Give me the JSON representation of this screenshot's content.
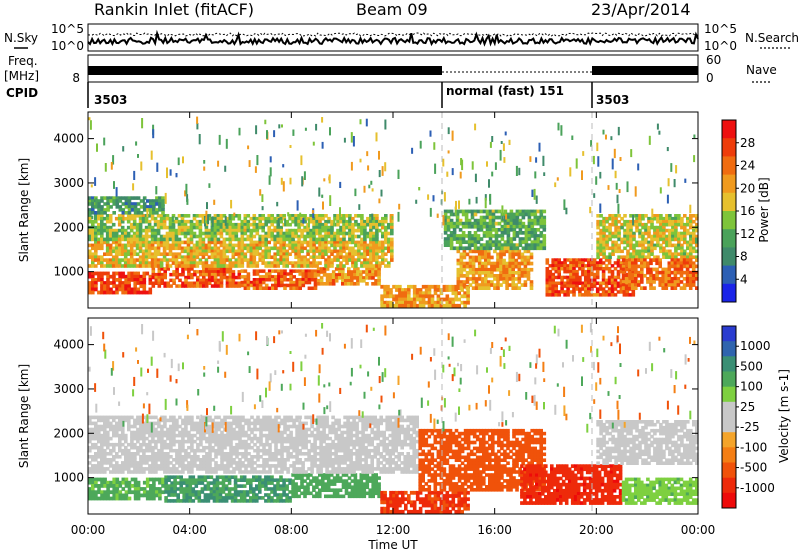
{
  "header": {
    "station": "Rankin Inlet (fitACF)",
    "beam": "Beam 09",
    "date": "23/Apr/2014"
  },
  "top_panel": {
    "left_label": "N.Sky",
    "right_label": "N.Search",
    "left_ticks": [
      "10^5",
      "10^0"
    ],
    "right_ticks": [
      "10^5",
      "10^0"
    ]
  },
  "freq_panel": {
    "left_label_1": "Freq.",
    "left_label_2": "[MHz]",
    "right_label": "Nave",
    "left_ticks": [
      "8"
    ],
    "right_ticks": [
      "60",
      "0"
    ]
  },
  "cpid_panel": {
    "label": "CPID",
    "segments": [
      {
        "text": "3503",
        "start_hour": 0,
        "end_hour": 14
      },
      {
        "text": "normal (fast) 151",
        "start_hour": 14,
        "end_hour": 20
      },
      {
        "text": "3503",
        "start_hour": 20,
        "end_hour": 24
      }
    ]
  },
  "colors": {
    "power_scale": [
      "#1a24e8",
      "#2c5fb4",
      "#3f8a6a",
      "#4aa25a",
      "#7ec43a",
      "#e6c02e",
      "#f09a1e",
      "#f06c10",
      "#ee3c0a",
      "#ee1010"
    ],
    "velocity_scale": [
      "#2a3cd0",
      "#2f64ae",
      "#3a8f74",
      "#4da85a",
      "#7ed040",
      "#c8c8c8",
      "#c8c8c8",
      "#f4a42a",
      "#f47e14",
      "#f0520a",
      "#ee2a0a",
      "#ee0a0a"
    ]
  },
  "chart_data": [
    {
      "type": "heatmap",
      "name": "Power",
      "xlabel": "Time UT",
      "ylabel": "Slant Range [km]",
      "xlim": [
        0,
        24
      ],
      "ylim": [
        180,
        4600
      ],
      "x_ticks": [
        {
          "value": 0,
          "label": "00:00"
        },
        {
          "value": 4,
          "label": "04:00"
        },
        {
          "value": 8,
          "label": "08:00"
        },
        {
          "value": 12,
          "label": "12:00"
        },
        {
          "value": 16,
          "label": "16:00"
        },
        {
          "value": 20,
          "label": "20:00"
        },
        {
          "value": 24,
          "label": "00:00"
        }
      ],
      "y_ticks": [
        1000,
        2000,
        3000,
        4000
      ],
      "mode_change_hours": [
        14,
        20
      ],
      "colorbar": {
        "label": "Power [dB]",
        "range": [
          0,
          32
        ],
        "ticks": [
          "28",
          "24",
          "20",
          "16",
          "12",
          "8",
          "4"
        ]
      },
      "regions": [
        {
          "t0": 0,
          "t1": 2.5,
          "r0": 500,
          "r1": 1000,
          "value": 27
        },
        {
          "t0": 2.5,
          "t1": 6,
          "r0": 650,
          "r1": 1100,
          "value": 26
        },
        {
          "t0": 6,
          "t1": 9,
          "r0": 600,
          "r1": 1050,
          "value": 25
        },
        {
          "t0": 9,
          "t1": 11.5,
          "r0": 700,
          "r1": 1100,
          "value": 22
        },
        {
          "t0": 0,
          "t1": 12,
          "r0": 1100,
          "r1": 1700,
          "value": 19
        },
        {
          "t0": 0,
          "t1": 12,
          "r0": 1700,
          "r1": 2300,
          "value": 15
        },
        {
          "t0": 0,
          "t1": 3,
          "r0": 2300,
          "r1": 2700,
          "value": 10
        },
        {
          "t0": 11.5,
          "t1": 15,
          "r0": 200,
          "r1": 700,
          "value": 21
        },
        {
          "t0": 14.5,
          "t1": 17.5,
          "r0": 600,
          "r1": 1500,
          "value": 21
        },
        {
          "t0": 14,
          "t1": 18,
          "r0": 1500,
          "r1": 2400,
          "value": 12
        },
        {
          "t0": 18,
          "t1": 21.5,
          "r0": 450,
          "r1": 1300,
          "value": 26
        },
        {
          "t0": 20,
          "t1": 24,
          "r0": 1300,
          "r1": 2300,
          "value": 17
        },
        {
          "t0": 21,
          "t1": 24,
          "r0": 600,
          "r1": 1300,
          "value": 24
        }
      ]
    },
    {
      "type": "heatmap",
      "name": "Velocity",
      "xlabel": "Time UT",
      "ylabel": "Slant Range [km]",
      "xlim": [
        0,
        24
      ],
      "ylim": [
        180,
        4600
      ],
      "x_ticks": [
        {
          "value": 0,
          "label": "00:00"
        },
        {
          "value": 4,
          "label": "04:00"
        },
        {
          "value": 8,
          "label": "08:00"
        },
        {
          "value": 12,
          "label": "12:00"
        },
        {
          "value": 16,
          "label": "16:00"
        },
        {
          "value": 20,
          "label": "20:00"
        },
        {
          "value": 24,
          "label": "00:00"
        }
      ],
      "y_ticks": [
        1000,
        2000,
        3000,
        4000
      ],
      "mode_change_hours": [
        14,
        20
      ],
      "colorbar": {
        "label": "Velocity [m s-1]",
        "ticks": [
          "1000",
          "500",
          "100",
          "25",
          "-25",
          "-100",
          "-500",
          "-1000"
        ]
      },
      "regions": [
        {
          "t0": 0,
          "t1": 3,
          "r0": 500,
          "r1": 1000,
          "value": 120
        },
        {
          "t0": 3,
          "t1": 8,
          "r0": 450,
          "r1": 1050,
          "value": 250
        },
        {
          "t0": 8,
          "t1": 11.5,
          "r0": 550,
          "r1": 1100,
          "value": 150
        },
        {
          "t0": 0,
          "t1": 13,
          "r0": 1100,
          "r1": 2400,
          "value": 0
        },
        {
          "t0": 11.5,
          "t1": 15,
          "r0": 200,
          "r1": 700,
          "value": -300
        },
        {
          "t0": 13,
          "t1": 18,
          "r0": 700,
          "r1": 2100,
          "value": -150
        },
        {
          "t0": 17,
          "t1": 21,
          "r0": 400,
          "r1": 1300,
          "value": -400
        },
        {
          "t0": 20,
          "t1": 24,
          "r0": 1300,
          "r1": 2300,
          "value": 0
        },
        {
          "t0": 21,
          "t1": 24,
          "r0": 400,
          "r1": 1000,
          "value": 80
        }
      ]
    }
  ]
}
